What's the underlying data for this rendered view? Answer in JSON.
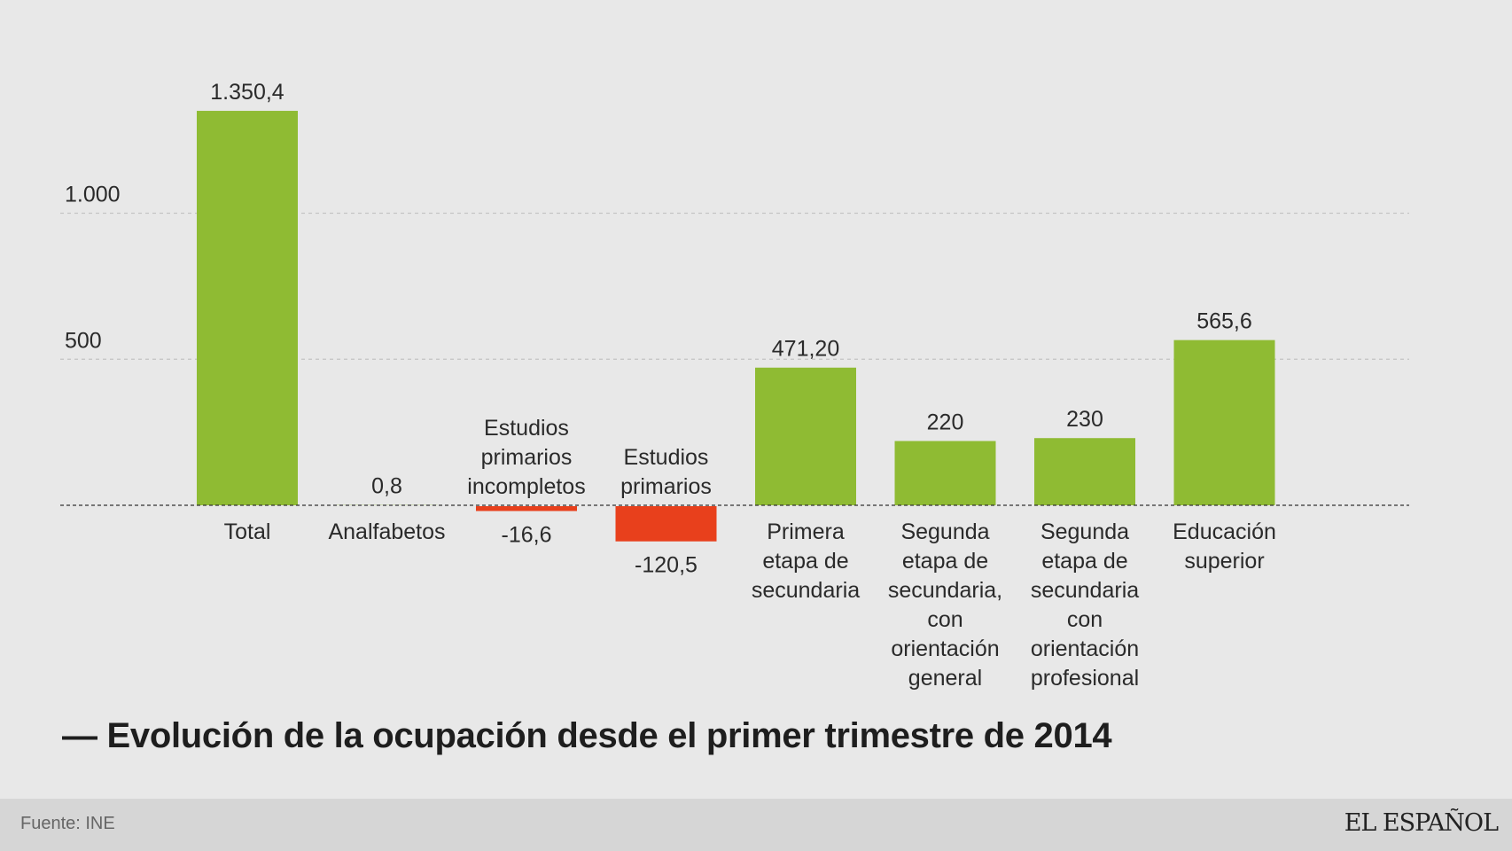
{
  "chart_data": {
    "type": "bar",
    "title": "— Evolución de la ocupación desde el primer trimestre de 2014",
    "categories": [
      "Total",
      "Analfabetos",
      "Estudios primarios incompletos",
      "Estudios primarios",
      "Primera etapa de secundaria",
      "Segunda etapa de secundaria, con orientación general",
      "Segunda etapa de secundaria con orientación profesional",
      "Educación superior"
    ],
    "category_lines": [
      [
        "Total"
      ],
      [
        "Analfabetos"
      ],
      [
        "Estudios",
        "primarios",
        "incompletos"
      ],
      [
        "Estudios",
        "primarios"
      ],
      [
        "Primera",
        "etapa de",
        "secundaria"
      ],
      [
        "Segunda",
        "etapa de",
        "secundaria,",
        "con",
        "orientación",
        "general"
      ],
      [
        "Segunda",
        "etapa de",
        "secundaria",
        "con",
        "orientación",
        "profesional"
      ],
      [
        "Educación",
        "superior"
      ]
    ],
    "values": [
      1350.4,
      0.8,
      -16.6,
      -120.5,
      471.2,
      220,
      230,
      565.6
    ],
    "value_labels": [
      "1.350,4",
      "0,8",
      "-16,6",
      "-120,5",
      "471,20",
      "220",
      "230",
      "565,6"
    ],
    "yticks": [
      500,
      1000
    ],
    "ytick_labels": [
      "500",
      "1.000"
    ],
    "ylim": [
      -150,
      1400
    ],
    "grid": true,
    "colors": {
      "positive": "#8fbb33",
      "negative": "#e8401c"
    }
  },
  "footer": {
    "source": "Fuente: INE",
    "brand": "EL ESPAÑOL"
  }
}
